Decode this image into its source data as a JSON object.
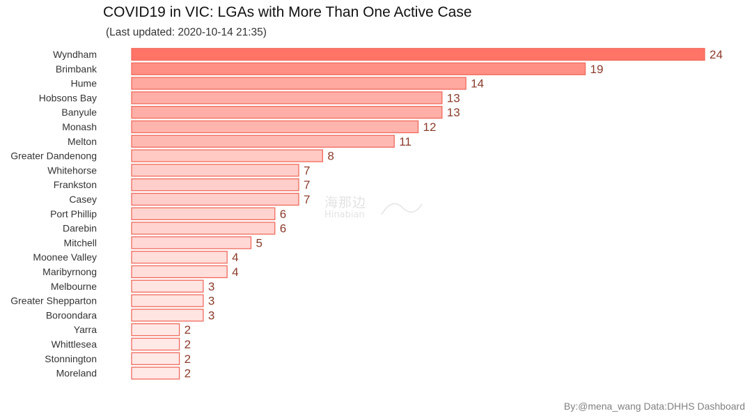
{
  "chart_data": {
    "type": "bar",
    "orientation": "horizontal",
    "title": "COVID19 in VIC: LGAs with More Than One Active Case",
    "subtitle": "(Last updated: 2020-10-14 21:35)",
    "caption": "By:@mena_wang  Data:DHHS Dashboard",
    "xlabel": "",
    "ylabel": "",
    "xlim": [
      0,
      24
    ],
    "categories": [
      "Wyndham",
      "Brimbank",
      "Hume",
      "Hobsons Bay",
      "Banyule",
      "Monash",
      "Melton",
      "Greater Dandenong",
      "Whitehorse",
      "Frankston",
      "Casey",
      "Port Phillip",
      "Darebin",
      "Mitchell",
      "Moonee Valley",
      "Maribyrnong",
      "Melbourne",
      "Greater Shepparton",
      "Boroondara",
      "Yarra",
      "Whittlesea",
      "Stonnington",
      "Moreland"
    ],
    "values": [
      24,
      19,
      14,
      13,
      13,
      12,
      11,
      8,
      7,
      7,
      7,
      6,
      6,
      5,
      4,
      4,
      3,
      3,
      3,
      2,
      2,
      2,
      2
    ],
    "grid": false,
    "legend": "none"
  },
  "colors": {
    "fill_low": "#ffe9e7",
    "fill_high": "#ff7467",
    "bar_outline": "#f06a5c",
    "value_label": "#8b3a2a"
  },
  "watermark": {
    "text_cn": "海那边",
    "text_en": "Hinabian"
  }
}
